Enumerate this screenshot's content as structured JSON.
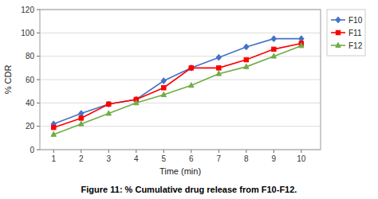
{
  "chart_data": {
    "type": "line",
    "title": "Figure 11: % Cumulative drug release from F10-F12.",
    "x_label": "Time (min)",
    "y_label": "% CDR",
    "x": [
      1,
      2,
      3,
      4,
      5,
      6,
      7,
      8,
      9,
      10
    ],
    "series": [
      {
        "name": "F10",
        "color": "#4472C4",
        "marker": "diamond",
        "values": [
          22,
          31,
          39,
          43,
          59,
          70,
          79,
          88,
          95,
          95
        ]
      },
      {
        "name": "F11",
        "color": "#FF0000",
        "marker": "square",
        "values": [
          19,
          27,
          39,
          43,
          53,
          70,
          70,
          77,
          86,
          91
        ]
      },
      {
        "name": "F12",
        "color": "#70AD47",
        "marker": "triangle",
        "values": [
          13,
          22,
          31,
          40,
          47,
          55,
          65,
          71,
          80,
          89
        ]
      }
    ],
    "xlim": [
      0.5,
      10.7
    ],
    "ylim": [
      0,
      120
    ],
    "xticks": [
      1,
      2,
      3,
      4,
      5,
      6,
      7,
      8,
      9,
      10
    ],
    "yticks": [
      0,
      20,
      40,
      60,
      80,
      100,
      120
    ],
    "grid": "y",
    "legend": "right"
  }
}
